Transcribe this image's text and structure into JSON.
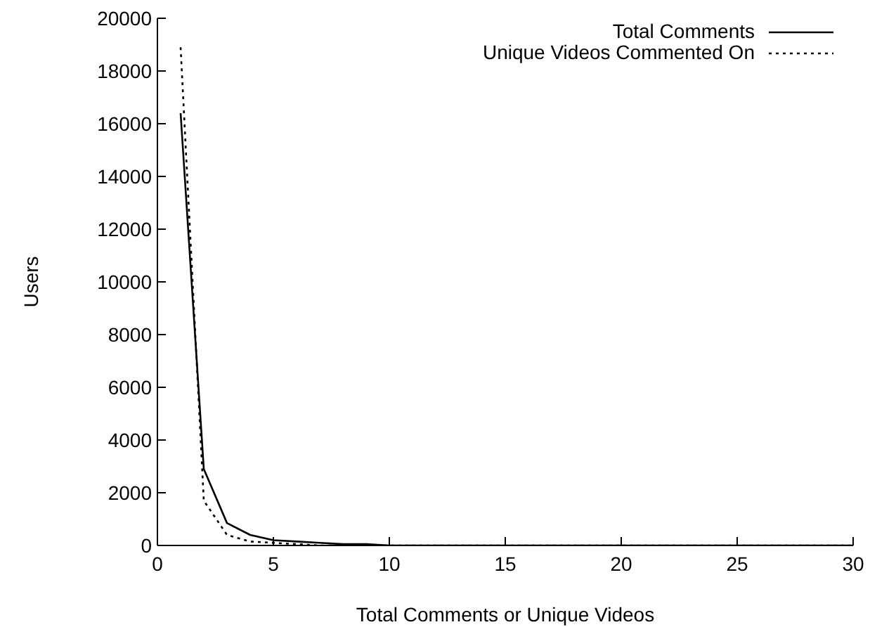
{
  "chart_data": {
    "type": "line",
    "xlabel": "Total Comments or Unique Videos",
    "ylabel": "Users",
    "x": [
      1,
      2,
      3,
      4,
      5,
      6,
      7,
      8,
      9,
      10,
      11,
      12,
      13,
      14,
      15,
      16,
      17,
      18,
      19,
      20,
      21,
      22,
      23,
      24,
      25,
      26,
      27,
      28,
      29,
      30
    ],
    "series": [
      {
        "name": "Total Comments",
        "color": "#000000",
        "line_style": "solid",
        "values": [
          16400,
          2900,
          850,
          400,
          200,
          150,
          100,
          50,
          50,
          0,
          0,
          0,
          0,
          0,
          0,
          0,
          0,
          0,
          0,
          0,
          0,
          0,
          0,
          0,
          0,
          0,
          0,
          0,
          0,
          0
        ]
      },
      {
        "name": "Unique Videos Commented On",
        "color": "#000000",
        "line_style": "dotted",
        "values": [
          18900,
          1700,
          400,
          150,
          100,
          50,
          0,
          0,
          0,
          0,
          0,
          0,
          0,
          0,
          0,
          0,
          0,
          0,
          0,
          0,
          0,
          0,
          0,
          0,
          0,
          0,
          0,
          0,
          0,
          0
        ]
      }
    ],
    "xlim": [
      0,
      30
    ],
    "xticks": [
      0,
      5,
      10,
      15,
      20,
      25,
      30
    ],
    "ylim": [
      0,
      20000
    ],
    "yticks": [
      0,
      2000,
      4000,
      6000,
      8000,
      10000,
      12000,
      14000,
      16000,
      18000,
      20000
    ],
    "grid": false,
    "legend": "top right",
    "marker": "none"
  }
}
